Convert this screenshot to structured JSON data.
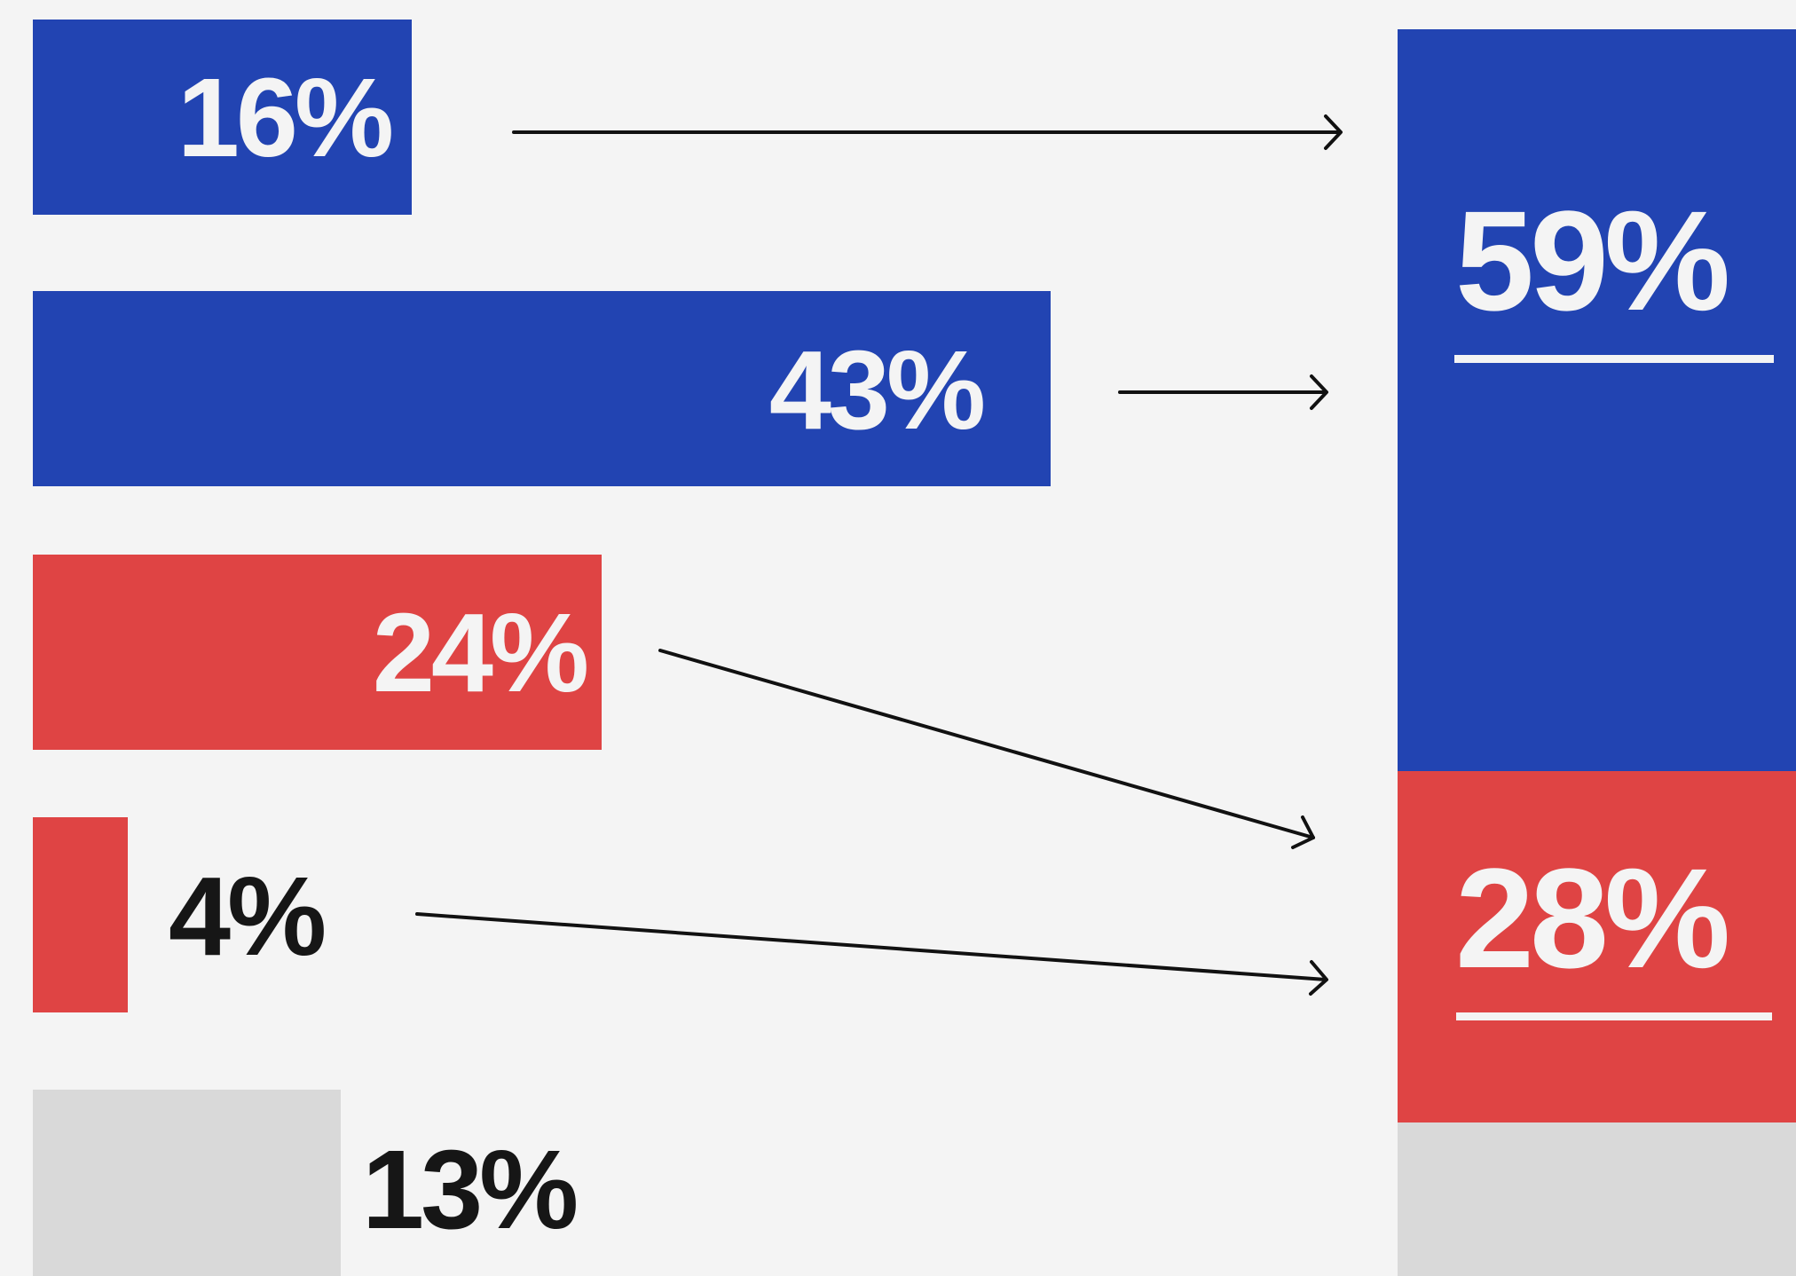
{
  "chart_data": [
    {
      "type": "bar",
      "orientation": "horizontal",
      "values": [
        16,
        43,
        24,
        4,
        13
      ],
      "labels": [
        "16%",
        "43%",
        "24%",
        "4%",
        "13%"
      ],
      "colors": [
        "#2244b2",
        "#2244b2",
        "#df4444",
        "#df4444",
        "#d9d9d9"
      ],
      "xlim": [
        0,
        50
      ]
    },
    {
      "type": "bar",
      "orientation": "stacked",
      "values": [
        59,
        28,
        13
      ],
      "labels": [
        "59%",
        "28%",
        ""
      ],
      "colors": [
        "#2244b2",
        "#df4444",
        "#d9d9d9"
      ]
    }
  ],
  "colors": {
    "blue": "#2244b2",
    "red": "#df4444",
    "gray": "#d9d9d9",
    "background": "#f4f4f4",
    "text_dark": "#161616",
    "text_light": "#f4f4f4"
  },
  "connectors": [
    {
      "from": "16%",
      "to": "59%"
    },
    {
      "from": "43%",
      "to": "59%"
    },
    {
      "from": "24%",
      "to": "28%"
    },
    {
      "from": "4%",
      "to": "28%"
    }
  ]
}
